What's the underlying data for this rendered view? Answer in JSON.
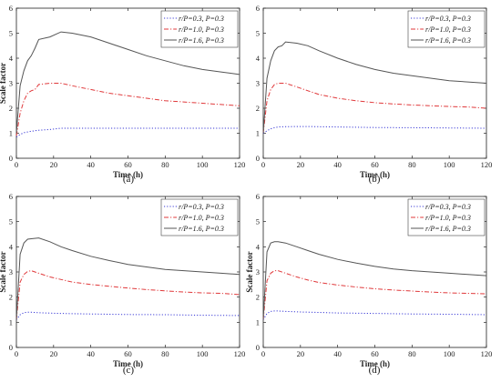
{
  "chart_data": [
    {
      "panel_label": "(a)",
      "type": "line",
      "xlabel": "Time (h)",
      "ylabel": "Scale factor",
      "xlim": [
        0,
        120
      ],
      "ylim": [
        0,
        6
      ],
      "xticks": [
        0,
        20,
        40,
        60,
        80,
        100,
        120
      ],
      "yticks": [
        0,
        1,
        2,
        3,
        4,
        5,
        6
      ],
      "grid": false,
      "legend_position": "top-right",
      "series": [
        {
          "name": "r/P=0.3, P=0.3",
          "color": "#3a3ad6",
          "dash": "dotted",
          "x": [
            0,
            2,
            4,
            6,
            8,
            12,
            18,
            24,
            30,
            40,
            50,
            60,
            70,
            80,
            90,
            100,
            110,
            120
          ],
          "y": [
            0.85,
            0.95,
            1.02,
            1.05,
            1.08,
            1.12,
            1.15,
            1.2,
            1.2,
            1.2,
            1.2,
            1.2,
            1.2,
            1.2,
            1.2,
            1.2,
            1.2,
            1.2
          ]
        },
        {
          "name": "r/P=1.0, P=0.3",
          "color": "#e0393b",
          "dash": "dashdot",
          "x": [
            0,
            2,
            4,
            6,
            8,
            10,
            12,
            18,
            24,
            30,
            40,
            50,
            60,
            70,
            80,
            90,
            100,
            110,
            120
          ],
          "y": [
            0.9,
            1.8,
            2.3,
            2.6,
            2.7,
            2.75,
            2.95,
            3.0,
            3.0,
            2.9,
            2.75,
            2.6,
            2.5,
            2.4,
            2.3,
            2.25,
            2.2,
            2.15,
            2.1
          ]
        },
        {
          "name": "r/P=1.6, P=0.3",
          "color": "#555555",
          "dash": "solid",
          "x": [
            0,
            2,
            4,
            6,
            8,
            10,
            12,
            18,
            24,
            30,
            40,
            50,
            60,
            70,
            80,
            90,
            100,
            110,
            120
          ],
          "y": [
            1.0,
            2.9,
            3.5,
            3.9,
            4.1,
            4.4,
            4.75,
            4.85,
            5.05,
            5.0,
            4.85,
            4.6,
            4.35,
            4.1,
            3.9,
            3.7,
            3.55,
            3.45,
            3.35
          ]
        }
      ]
    },
    {
      "panel_label": "(b)",
      "type": "line",
      "xlabel": "Time (h)",
      "ylabel": "",
      "xlim": [
        0,
        120
      ],
      "ylim": [
        0,
        6
      ],
      "xticks": [
        0,
        20,
        40,
        60,
        80,
        100,
        120
      ],
      "yticks": [
        0,
        1,
        2,
        3,
        4,
        5,
        6
      ],
      "grid": false,
      "legend_position": "top-right",
      "series": [
        {
          "name": "r/P=0.3, P=0.3",
          "color": "#3a3ad6",
          "dash": "dotted",
          "x": [
            0,
            2,
            4,
            6,
            8,
            12,
            18,
            24,
            30,
            40,
            60,
            80,
            100,
            120
          ],
          "y": [
            1.0,
            1.1,
            1.18,
            1.22,
            1.25,
            1.26,
            1.27,
            1.27,
            1.26,
            1.25,
            1.23,
            1.22,
            1.21,
            1.2
          ]
        },
        {
          "name": "r/P=1.0, P=0.3",
          "color": "#e0393b",
          "dash": "dashdot",
          "x": [
            0,
            2,
            4,
            6,
            8,
            12,
            18,
            24,
            30,
            40,
            50,
            60,
            70,
            80,
            90,
            100,
            110,
            120
          ],
          "y": [
            1.0,
            2.3,
            2.75,
            2.95,
            3.0,
            3.0,
            2.85,
            2.7,
            2.55,
            2.4,
            2.3,
            2.22,
            2.17,
            2.13,
            2.1,
            2.07,
            2.05,
            2.0
          ]
        },
        {
          "name": "r/P=1.6, P=0.3",
          "color": "#555555",
          "dash": "solid",
          "x": [
            0,
            2,
            4,
            6,
            8,
            10,
            12,
            18,
            24,
            30,
            40,
            50,
            60,
            70,
            80,
            90,
            100,
            110,
            120
          ],
          "y": [
            1.0,
            3.2,
            3.9,
            4.3,
            4.45,
            4.5,
            4.65,
            4.6,
            4.5,
            4.3,
            4.0,
            3.75,
            3.55,
            3.4,
            3.3,
            3.2,
            3.1,
            3.05,
            3.0
          ]
        }
      ]
    },
    {
      "panel_label": "(c)",
      "type": "line",
      "xlabel": "Time (h)",
      "ylabel": "Scale factor",
      "xlim": [
        0,
        120
      ],
      "ylim": [
        0,
        6
      ],
      "xticks": [
        0,
        20,
        40,
        60,
        80,
        100,
        120
      ],
      "yticks": [
        0,
        1,
        2,
        3,
        4,
        5,
        6
      ],
      "grid": false,
      "legend_position": "top-right",
      "series": [
        {
          "name": "r/P=0.3, P=0.3",
          "color": "#3a3ad6",
          "dash": "dotted",
          "x": [
            0,
            2,
            4,
            6,
            8,
            12,
            20,
            30,
            40,
            60,
            80,
            100,
            120
          ],
          "y": [
            1.1,
            1.3,
            1.38,
            1.4,
            1.4,
            1.38,
            1.36,
            1.34,
            1.33,
            1.31,
            1.3,
            1.28,
            1.27
          ]
        },
        {
          "name": "r/P=1.0, P=0.3",
          "color": "#e0393b",
          "dash": "dashdot",
          "x": [
            0,
            2,
            4,
            6,
            8,
            12,
            18,
            24,
            30,
            40,
            50,
            60,
            70,
            80,
            90,
            100,
            110,
            120
          ],
          "y": [
            1.1,
            2.6,
            2.9,
            3.02,
            3.05,
            2.95,
            2.8,
            2.7,
            2.6,
            2.5,
            2.43,
            2.36,
            2.3,
            2.25,
            2.2,
            2.17,
            2.15,
            2.1
          ]
        },
        {
          "name": "r/P=1.6, P=0.3",
          "color": "#555555",
          "dash": "solid",
          "x": [
            0,
            2,
            4,
            6,
            8,
            12,
            18,
            24,
            30,
            40,
            50,
            60,
            70,
            80,
            90,
            100,
            110,
            120
          ],
          "y": [
            1.1,
            3.7,
            4.15,
            4.3,
            4.32,
            4.35,
            4.2,
            4.0,
            3.85,
            3.62,
            3.45,
            3.3,
            3.2,
            3.1,
            3.05,
            3.0,
            2.95,
            2.9
          ]
        }
      ]
    },
    {
      "panel_label": "(d)",
      "type": "line",
      "xlabel": "Time (h)",
      "ylabel": "Scale factor",
      "xlim": [
        0,
        120
      ],
      "ylim": [
        0,
        6
      ],
      "xticks": [
        0,
        20,
        40,
        60,
        80,
        100,
        120
      ],
      "yticks": [
        0,
        1,
        2,
        3,
        4,
        5,
        6
      ],
      "grid": false,
      "legend_position": "top-right",
      "series": [
        {
          "name": "r/P=0.3, P=0.3",
          "color": "#3a3ad6",
          "dash": "dotted",
          "x": [
            0,
            2,
            4,
            6,
            8,
            12,
            20,
            30,
            40,
            60,
            80,
            100,
            120
          ],
          "y": [
            1.1,
            1.35,
            1.43,
            1.45,
            1.45,
            1.43,
            1.41,
            1.39,
            1.37,
            1.35,
            1.33,
            1.32,
            1.3
          ]
        },
        {
          "name": "r/P=1.0, P=0.3",
          "color": "#e0393b",
          "dash": "dashdot",
          "x": [
            0,
            2,
            4,
            6,
            8,
            12,
            18,
            24,
            30,
            40,
            50,
            60,
            70,
            80,
            90,
            100,
            110,
            120
          ],
          "y": [
            1.1,
            2.65,
            2.95,
            3.05,
            3.05,
            2.95,
            2.8,
            2.68,
            2.58,
            2.48,
            2.4,
            2.33,
            2.28,
            2.24,
            2.2,
            2.17,
            2.15,
            2.13
          ]
        },
        {
          "name": "r/P=1.6, P=0.3",
          "color": "#555555",
          "dash": "solid",
          "x": [
            0,
            2,
            4,
            6,
            8,
            12,
            18,
            24,
            30,
            40,
            50,
            60,
            70,
            80,
            90,
            100,
            110,
            120
          ],
          "y": [
            1.1,
            3.8,
            4.15,
            4.2,
            4.2,
            4.15,
            4.0,
            3.85,
            3.7,
            3.5,
            3.35,
            3.22,
            3.12,
            3.05,
            3.0,
            2.95,
            2.9,
            2.85
          ]
        }
      ]
    }
  ]
}
